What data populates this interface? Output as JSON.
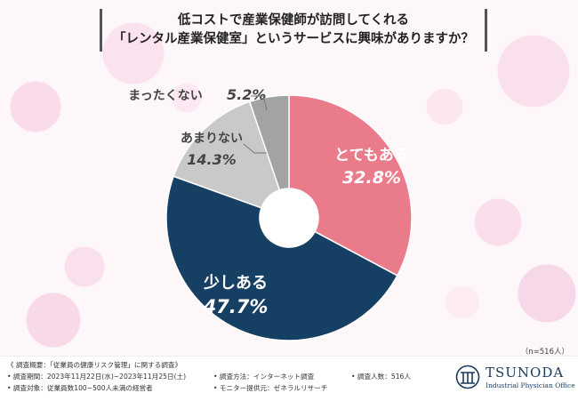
{
  "title": {
    "line1": "低コストで産業保健師が訪問してくれる",
    "line2": "「レンタル産業保健室」というサービスに興味がありますか？"
  },
  "n_label": "（n=516人）",
  "chart_data": {
    "type": "pie",
    "donut": true,
    "slices": [
      {
        "label": "とてもある",
        "value": 32.8,
        "value_text": "32.8%",
        "color": "#e97b8a"
      },
      {
        "label": "少しある",
        "value": 47.7,
        "value_text": "47.7%",
        "color": "#163f64"
      },
      {
        "label": "あまりない",
        "value": 14.3,
        "value_text": "14.3%",
        "color": "#c9c9c9"
      },
      {
        "label": "まったくない",
        "value": 5.2,
        "value_text": "5.2%",
        "color": "#a3a3a3"
      }
    ],
    "start": "top",
    "direction": "clockwise"
  },
  "footer": {
    "overview": "《 調査概要：「従業員の健康リスク管理」に関する調査》",
    "period": "• 調査期間：2023年11月22日(水)~2023年11月25日(土)",
    "method": "• 調査方法：インターネット調査",
    "count": "• 調査人数：516人",
    "target": "• 調査対象：従業員数100~500人未満の経営者",
    "provider": "• モニター提供元：ゼネラルリサーチ"
  },
  "logo": {
    "name": "TSUNODA",
    "sub": "Industrial Physician Office"
  },
  "colors": {
    "accent_pink": "#e97b8a",
    "navy": "#163f64"
  }
}
